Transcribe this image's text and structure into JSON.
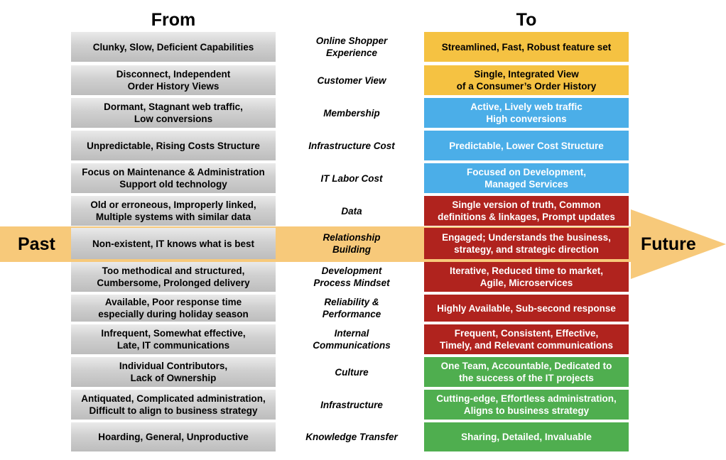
{
  "headers": {
    "from": "From",
    "to": "To"
  },
  "arrow": {
    "left_label": "Past",
    "right_label": "Future"
  },
  "colors": {
    "yellow": "#F5C242",
    "blue": "#4BAEE8",
    "red": "#B0231E",
    "green": "#4FAE4F",
    "arrow": "#F7C97A",
    "gray": "#C9C9C9"
  },
  "rows": [
    {
      "category": "Online Shopper\nExperience",
      "from": "Clunky, Slow, Deficient Capabilities",
      "to": "Streamlined, Fast, Robust feature set",
      "to_color": "yellow"
    },
    {
      "category": "Customer View",
      "from": "Disconnect, Independent\nOrder History Views",
      "to": "Single, Integrated View\nof a Consumer’s Order History",
      "to_color": "yellow"
    },
    {
      "category": "Membership",
      "from": "Dormant, Stagnant web traffic,\nLow conversions",
      "to": "Active, Lively web traffic\nHigh conversions",
      "to_color": "blue"
    },
    {
      "category": "Infrastructure Cost",
      "from": "Unpredictable, Rising Costs Structure",
      "to": "Predictable, Lower Cost Structure",
      "to_color": "blue"
    },
    {
      "category": "IT Labor Cost",
      "from": "Focus on Maintenance & Administration\nSupport old technology",
      "to": "Focused on Development,\nManaged Services",
      "to_color": "blue"
    },
    {
      "category": "Data",
      "from": "Old or erroneous, Improperly linked,\nMultiple systems with similar data",
      "to": "Single version of truth, Common\ndefinitions & linkages, Prompt updates",
      "to_color": "red"
    },
    {
      "category": "Relationship\nBuilding",
      "from": "Non-existent, IT knows what is best",
      "to": "Engaged; Understands the business,\nstrategy, and strategic direction",
      "to_color": "red"
    },
    {
      "category": "Development\nProcess Mindset",
      "from": "Too methodical and structured,\nCumbersome, Prolonged delivery",
      "to": "Iterative, Reduced time to market,\nAgile, Microservices",
      "to_color": "red"
    },
    {
      "category": "Reliability &\nPerformance",
      "from": "Available, Poor response time\nespecially during holiday season",
      "to": "Highly Available, Sub-second response",
      "to_color": "red"
    },
    {
      "category": "Internal\nCommunications",
      "from": "Infrequent, Somewhat effective,\nLate, IT communications",
      "to": "Frequent, Consistent, Effective,\nTimely, and Relevant communications",
      "to_color": "red"
    },
    {
      "category": "Culture",
      "from": "Individual Contributors,\nLack of Ownership",
      "to": "One Team, Accountable, Dedicated to\nthe success of the IT projects",
      "to_color": "green"
    },
    {
      "category": "Infrastructure",
      "from": "Antiquated, Complicated administration,\nDifficult to align to business strategy",
      "to": "Cutting-edge, Effortless administration,\nAligns to business strategy",
      "to_color": "green"
    },
    {
      "category": "Knowledge Transfer",
      "from": "Hoarding, General, Unproductive",
      "to": "Sharing, Detailed, Invaluable",
      "to_color": "green"
    }
  ]
}
